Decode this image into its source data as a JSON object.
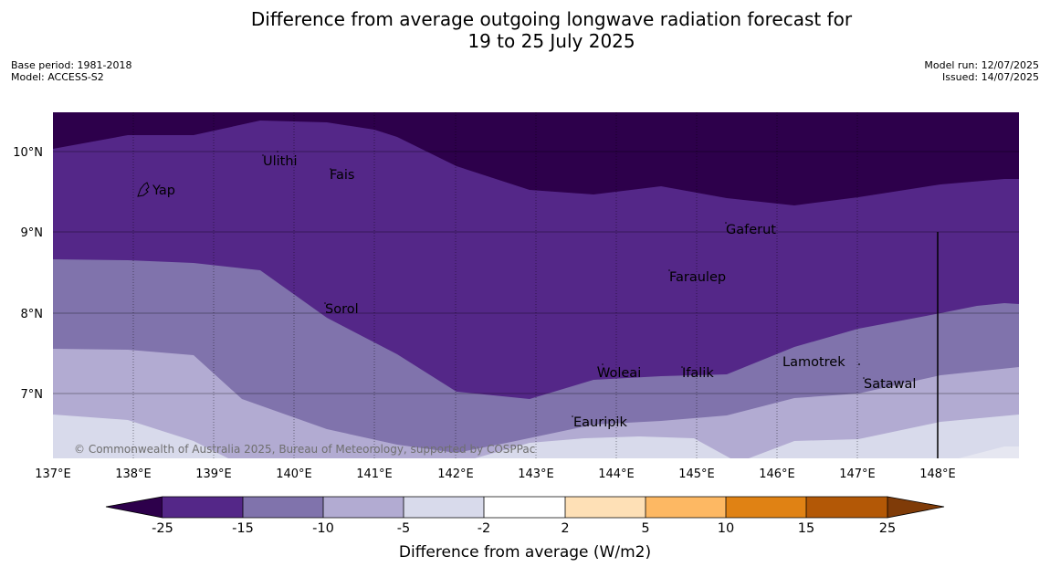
{
  "title": {
    "line1": "Difference from average outgoing longwave radiation forecast for",
    "line2": "19 to 25 July 2025"
  },
  "meta": {
    "base_period": "Base period: 1981-2018",
    "model": "Model: ACCESS-S2",
    "model_run": "Model run: 12/07/2025",
    "issued": "Issued: 14/07/2025"
  },
  "copyright": "© Commonwealth of Australia 2025, Bureau of Meteorology, supported by COSPPac",
  "axes": {
    "lon_ticks": [
      "137°E",
      "138°E",
      "139°E",
      "140°E",
      "141°E",
      "142°E",
      "143°E",
      "144°E",
      "145°E",
      "146°E",
      "147°E",
      "148°E"
    ],
    "lat_ticks": [
      "10°N",
      "9°N",
      "8°N",
      "7°N"
    ]
  },
  "places": [
    {
      "name": "Yap"
    },
    {
      "name": "Ulithi"
    },
    {
      "name": "Fais"
    },
    {
      "name": "Gaferut"
    },
    {
      "name": "Faraulep"
    },
    {
      "name": "Sorol"
    },
    {
      "name": "Lamotrek"
    },
    {
      "name": "Woleai"
    },
    {
      "name": "Ifalik"
    },
    {
      "name": "Satawal"
    },
    {
      "name": "Eauripik"
    }
  ],
  "colorbar": {
    "label": "Difference from average (W/m2)",
    "ticks": [
      "-25",
      "-15",
      "-10",
      "-5",
      "-2",
      "2",
      "5",
      "10",
      "15",
      "25"
    ],
    "colors": {
      "below": "#2d004b",
      "bins": [
        "#542788",
        "#8073ac",
        "#b2abd2",
        "#d8daeb",
        "#ffffff",
        "#fee0b6",
        "#fdb863",
        "#e08214",
        "#b35806"
      ],
      "above": "#7f3b08"
    }
  }
}
